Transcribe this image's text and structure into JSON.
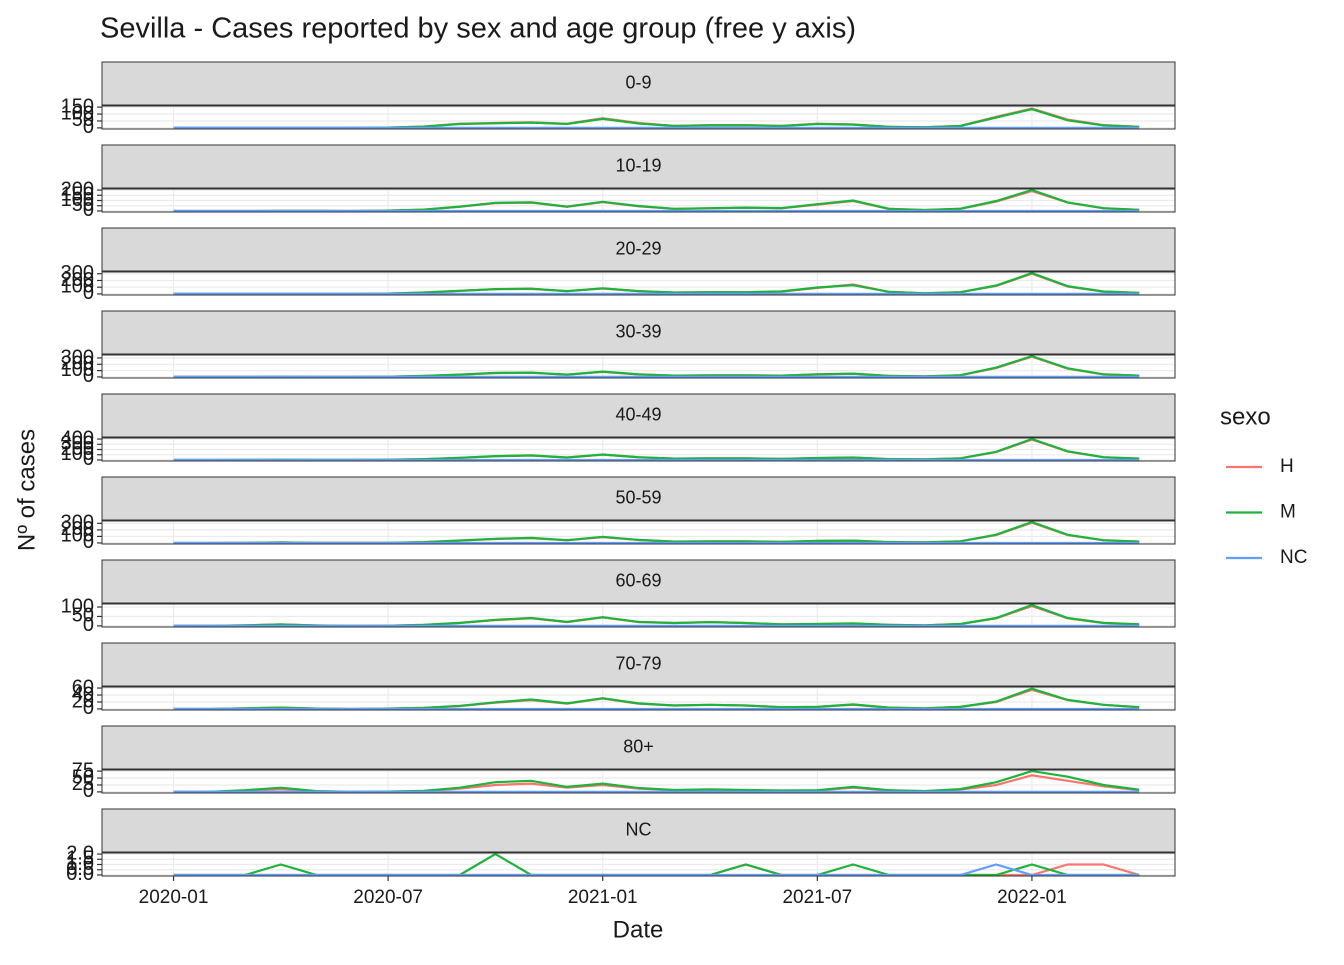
{
  "chart_data": {
    "type": "line",
    "title": "Sevilla - Cases reported by sex and age group (free y axis)",
    "x_label": "Date",
    "y_label": "Nº of cases",
    "legend_title": "sexo",
    "series": [
      {
        "name": "H",
        "color": "#f8766d"
      },
      {
        "name": "M",
        "color": "#1eb33a"
      },
      {
        "name": "NC",
        "color": "#619cff"
      }
    ],
    "x": [
      "2020-01",
      "2020-02",
      "2020-03",
      "2020-04",
      "2020-05",
      "2020-06",
      "2020-07",
      "2020-08",
      "2020-09",
      "2020-10",
      "2020-11",
      "2020-12",
      "2021-01",
      "2021-02",
      "2021-03",
      "2021-04",
      "2021-05",
      "2021-06",
      "2021-07",
      "2021-08",
      "2021-09",
      "2021-10",
      "2021-11",
      "2021-12",
      "2022-01",
      "2022-02",
      "2022-03",
      "2022-04"
    ],
    "xlim": [
      "2019-11",
      "2022-05"
    ],
    "xticks": [
      "2020-01",
      "2020-07",
      "2021-01",
      "2021-07",
      "2022-01"
    ],
    "grid": true,
    "facets": [
      {
        "label": "0-9",
        "ylim": [
          -8,
          158
        ],
        "yticks": [
          0,
          50,
          100,
          150
        ],
        "values": [
          [
            0,
            0,
            0,
            1,
            1,
            0,
            2,
            10,
            30,
            35,
            40,
            30,
            70,
            35,
            15,
            20,
            20,
            15,
            30,
            25,
            8,
            5,
            15,
            80,
            140,
            60,
            20,
            8
          ],
          [
            0,
            0,
            0,
            1,
            1,
            0,
            2,
            9,
            28,
            33,
            38,
            28,
            65,
            32,
            14,
            18,
            19,
            14,
            28,
            24,
            7,
            5,
            14,
            75,
            135,
            55,
            18,
            7
          ],
          [
            0,
            0,
            0,
            0,
            0,
            0,
            0,
            0,
            0,
            0,
            0,
            0,
            0,
            0,
            0,
            0,
            0,
            0,
            0,
            0,
            0,
            0,
            0,
            0,
            0,
            0,
            0,
            0
          ]
        ]
      },
      {
        "label": "10-19",
        "ylim": [
          -10,
          210
        ],
        "yticks": [
          0,
          50,
          100,
          150,
          200
        ],
        "values": [
          [
            0,
            0,
            0,
            1,
            1,
            0,
            3,
            12,
            40,
            75,
            80,
            40,
            85,
            45,
            20,
            25,
            30,
            25,
            60,
            95,
            20,
            8,
            20,
            90,
            190,
            80,
            25,
            10
          ],
          [
            0,
            0,
            0,
            1,
            1,
            0,
            3,
            13,
            42,
            78,
            82,
            42,
            88,
            47,
            21,
            26,
            32,
            27,
            65,
            100,
            21,
            9,
            22,
            95,
            200,
            82,
            26,
            11
          ],
          [
            0,
            0,
            0,
            0,
            0,
            0,
            0,
            0,
            0,
            0,
            0,
            0,
            0,
            0,
            0,
            0,
            0,
            0,
            0,
            0,
            0,
            0,
            0,
            0,
            0,
            0,
            0,
            0
          ]
        ]
      },
      {
        "label": "20-29",
        "ylim": [
          -16,
          326
        ],
        "yticks": [
          0,
          100,
          200,
          300
        ],
        "values": [
          [
            0,
            0,
            0,
            2,
            1,
            1,
            5,
            20,
            45,
            70,
            75,
            40,
            80,
            40,
            20,
            25,
            25,
            35,
            90,
            140,
            30,
            10,
            25,
            120,
            300,
            110,
            35,
            15
          ],
          [
            0,
            0,
            0,
            2,
            1,
            1,
            5,
            21,
            47,
            72,
            78,
            42,
            83,
            42,
            21,
            26,
            26,
            37,
            95,
            130,
            31,
            11,
            26,
            125,
            310,
            115,
            36,
            16
          ],
          [
            0,
            0,
            0,
            0,
            0,
            0,
            0,
            0,
            0,
            0,
            0,
            0,
            0,
            0,
            0,
            0,
            0,
            0,
            0,
            0,
            0,
            0,
            0,
            0,
            0,
            0,
            0,
            0
          ]
        ]
      },
      {
        "label": "30-39",
        "ylim": [
          -17,
          347
        ],
        "yticks": [
          0,
          100,
          200,
          300
        ],
        "values": [
          [
            0,
            0,
            1,
            3,
            1,
            1,
            4,
            15,
            35,
            60,
            65,
            35,
            80,
            40,
            20,
            25,
            25,
            20,
            40,
            50,
            15,
            8,
            25,
            140,
            320,
            130,
            40,
            20
          ],
          [
            0,
            0,
            1,
            3,
            1,
            1,
            4,
            16,
            37,
            63,
            68,
            37,
            84,
            42,
            21,
            26,
            26,
            21,
            42,
            53,
            16,
            9,
            27,
            148,
            330,
            136,
            42,
            21
          ],
          [
            0,
            0,
            0,
            0,
            0,
            0,
            0,
            0,
            0,
            0,
            0,
            0,
            0,
            0,
            0,
            0,
            0,
            0,
            0,
            0,
            0,
            0,
            0,
            0,
            0,
            0,
            0,
            0
          ]
        ]
      },
      {
        "label": "40-49",
        "ylim": [
          -20,
          420
        ],
        "yticks": [
          0,
          100,
          200,
          300,
          400
        ],
        "values": [
          [
            0,
            0,
            2,
            5,
            2,
            1,
            4,
            15,
            40,
            70,
            85,
            45,
            100,
            50,
            25,
            30,
            30,
            20,
            35,
            45,
            15,
            10,
            30,
            150,
            390,
            160,
            50,
            25
          ],
          [
            0,
            0,
            2,
            5,
            2,
            1,
            4,
            16,
            42,
            73,
            88,
            47,
            104,
            52,
            26,
            31,
            31,
            21,
            37,
            47,
            16,
            11,
            32,
            156,
            400,
            165,
            52,
            26
          ],
          [
            0,
            0,
            0,
            0,
            0,
            0,
            0,
            0,
            0,
            0,
            0,
            0,
            0,
            0,
            0,
            0,
            0,
            0,
            0,
            0,
            0,
            0,
            0,
            0,
            0,
            0,
            0,
            0
          ]
        ]
      },
      {
        "label": "50-59",
        "ylim": [
          -16,
          336
        ],
        "yticks": [
          0,
          100,
          200,
          300
        ],
        "values": [
          [
            0,
            0,
            3,
            8,
            2,
            1,
            3,
            12,
            35,
            60,
            75,
            40,
            90,
            45,
            20,
            25,
            25,
            15,
            30,
            35,
            12,
            8,
            25,
            120,
            310,
            120,
            40,
            20
          ],
          [
            0,
            0,
            3,
            7,
            2,
            1,
            3,
            13,
            37,
            63,
            78,
            42,
            94,
            47,
            21,
            26,
            26,
            16,
            31,
            36,
            13,
            9,
            26,
            126,
            320,
            125,
            42,
            21
          ],
          [
            0,
            0,
            0,
            0,
            0,
            0,
            0,
            0,
            0,
            0,
            0,
            0,
            0,
            0,
            0,
            0,
            0,
            0,
            0,
            0,
            0,
            0,
            0,
            0,
            0,
            0,
            0,
            0
          ]
        ]
      },
      {
        "label": "60-69",
        "ylim": [
          -6,
          116
        ],
        "yticks": [
          0,
          50,
          100
        ],
        "values": [
          [
            0,
            0,
            3,
            8,
            2,
            0,
            1,
            5,
            15,
            30,
            40,
            20,
            45,
            20,
            15,
            20,
            15,
            8,
            10,
            12,
            5,
            3,
            10,
            40,
            105,
            40,
            15,
            8
          ],
          [
            0,
            0,
            3,
            7,
            2,
            0,
            1,
            5,
            16,
            32,
            42,
            21,
            46,
            21,
            15,
            20,
            15,
            8,
            10,
            13,
            5,
            3,
            10,
            42,
            110,
            42,
            16,
            8
          ],
          [
            0,
            0,
            0,
            0,
            0,
            0,
            0,
            0,
            0,
            0,
            0,
            0,
            0,
            0,
            0,
            0,
            0,
            0,
            0,
            0,
            0,
            0,
            0,
            0,
            0,
            0,
            0,
            0
          ]
        ]
      },
      {
        "label": "70-79",
        "ylim": [
          -3,
          63
        ],
        "yticks": [
          0,
          20,
          40,
          60
        ],
        "values": [
          [
            0,
            0,
            2,
            4,
            1,
            0,
            1,
            3,
            8,
            18,
            25,
            15,
            30,
            15,
            10,
            12,
            10,
            5,
            6,
            12,
            4,
            2,
            6,
            20,
            55,
            25,
            12,
            5
          ],
          [
            0,
            0,
            2,
            4,
            1,
            0,
            1,
            3,
            9,
            19,
            27,
            16,
            31,
            16,
            10,
            12,
            10,
            5,
            6,
            13,
            4,
            2,
            6,
            21,
            58,
            26,
            12,
            5
          ],
          [
            0,
            0,
            0,
            0,
            0,
            0,
            0,
            0,
            0,
            0,
            0,
            0,
            0,
            0,
            0,
            0,
            0,
            0,
            0,
            0,
            0,
            0,
            0,
            0,
            0,
            0,
            0,
            0
          ]
        ]
      },
      {
        "label": "80+",
        "ylim": [
          -4,
          79
        ],
        "yticks": [
          0,
          25,
          50,
          75
        ],
        "values": [
          [
            0,
            0,
            4,
            10,
            2,
            0,
            1,
            3,
            12,
            25,
            30,
            15,
            25,
            12,
            6,
            8,
            6,
            4,
            5,
            15,
            5,
            3,
            8,
            25,
            60,
            40,
            20,
            6
          ],
          [
            0,
            0,
            6,
            15,
            3,
            0,
            1,
            4,
            15,
            35,
            40,
            18,
            30,
            14,
            7,
            9,
            7,
            5,
            6,
            18,
            6,
            3,
            10,
            35,
            75,
            55,
            25,
            8
          ],
          [
            0,
            0,
            0,
            0,
            0,
            0,
            0,
            0,
            0,
            0,
            0,
            0,
            0,
            0,
            0,
            0,
            0,
            0,
            0,
            0,
            0,
            0,
            0,
            0,
            0,
            0,
            0,
            0
          ]
        ]
      },
      {
        "label": "NC",
        "ylim": [
          -0.1,
          2.1
        ],
        "yticks": [
          {
            "value": 0,
            "label": "0.0"
          },
          0.5,
          {
            "value": 1,
            "label": "1.0"
          },
          1.5,
          {
            "value": 2,
            "label": "2.0"
          }
        ],
        "values": [
          [
            0,
            0,
            0,
            0,
            0,
            0,
            0,
            0,
            0,
            0,
            0,
            0,
            0,
            0,
            0,
            0,
            1,
            0,
            0,
            0,
            0,
            0,
            0,
            0,
            0,
            1,
            1,
            0
          ],
          [
            0,
            0,
            0,
            1,
            0,
            0,
            0,
            0,
            0,
            2,
            0,
            0,
            0,
            0,
            0,
            0,
            1,
            0,
            0,
            1,
            0,
            0,
            0,
            0,
            1,
            0,
            0,
            0
          ],
          [
            0,
            0,
            0,
            0,
            0,
            0,
            0,
            0,
            0,
            0,
            0,
            0,
            0,
            0,
            0,
            0,
            0,
            0,
            0,
            0,
            0,
            0,
            0,
            1,
            0,
            0,
            0,
            0
          ]
        ]
      }
    ]
  }
}
